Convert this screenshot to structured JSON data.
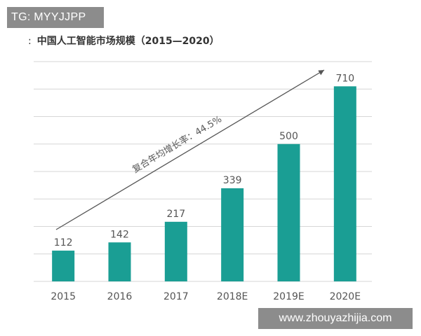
{
  "watermark_top": "TG: MYYJJPP",
  "watermark_bottom": "www.zhouyazhijia.com",
  "title_prefix": ":",
  "colors": {
    "bar": "#1a9e94",
    "grid": "#d6d6d6",
    "watermark_bg": "#8c8c8c"
  },
  "chart_data": {
    "type": "bar",
    "title": "中国人工智能市场规模（2015—2020）",
    "categories": [
      "2015",
      "2016",
      "2017",
      "2018E",
      "2019E",
      "2020E"
    ],
    "values": [
      112,
      142,
      217,
      339,
      500,
      710
    ],
    "data_labels": [
      "112",
      "142",
      "217",
      "339",
      "500",
      "710"
    ],
    "annotation": "复合年均增长率：44.5%",
    "ylim": [
      0,
      800
    ],
    "grid": true,
    "xlabel": "",
    "ylabel": ""
  }
}
